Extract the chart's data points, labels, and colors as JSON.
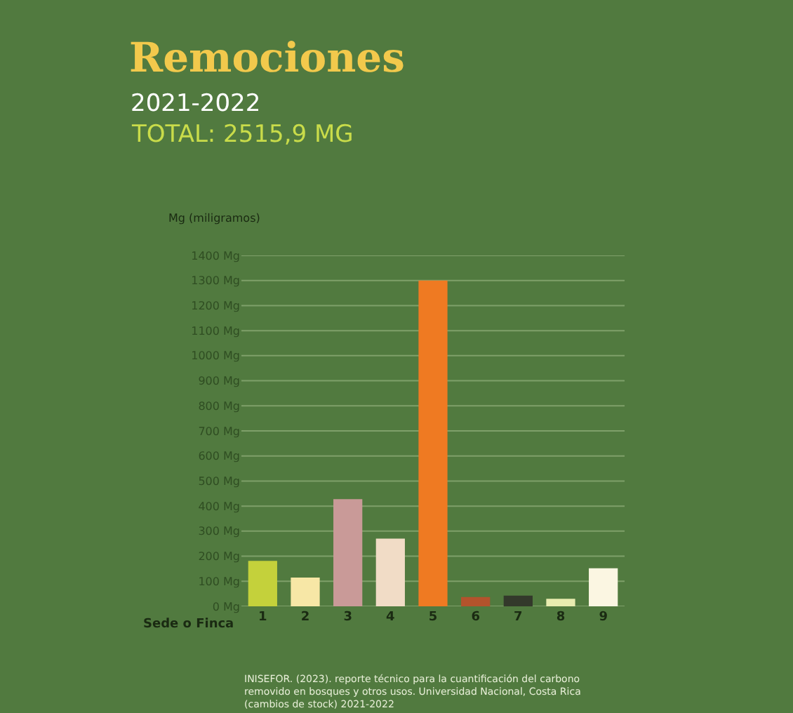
{
  "chart_data": {
    "type": "bar",
    "title": "Remociones",
    "subtitle": "2021-2022",
    "xlabel": "Sede o Finca",
    "ylabel": "Mg (miligramos)",
    "categories": [
      "1",
      "2",
      "3",
      "4",
      "5",
      "6",
      "7",
      "8",
      "9"
    ],
    "values": [
      181,
      115,
      428,
      270,
      1300,
      37,
      43,
      30,
      152
    ],
    "colors": [
      "#c4d13b",
      "#f7e7a6",
      "#c99a98",
      "#f1dcc6",
      "#ef7a22",
      "#b3532c",
      "#33392b",
      "#e8ecb0",
      "#fbf6e2"
    ],
    "ylim": [
      0,
      1400
    ],
    "yticks": [
      {
        "value": 0,
        "label": "0 Mg"
      },
      {
        "value": 100,
        "label": "100 Mg"
      },
      {
        "value": 200,
        "label": "200 Mg"
      },
      {
        "value": 300,
        "label": "300 Mg"
      },
      {
        "value": 400,
        "label": "400 Mg"
      },
      {
        "value": 500,
        "label": "500 Mg"
      },
      {
        "value": 600,
        "label": "600 Mg"
      },
      {
        "value": 700,
        "label": "700 Mg"
      },
      {
        "value": 800,
        "label": "800 Mg"
      },
      {
        "value": 900,
        "label": "900 Mg"
      },
      {
        "value": 1000,
        "label": "1000 Mg"
      },
      {
        "value": 1100,
        "label": "1100 Mg"
      },
      {
        "value": 1200,
        "label": "1200 Mg"
      },
      {
        "value": 1300,
        "label": "1300 Mg"
      },
      {
        "value": 1400,
        "label": "1400 Mg"
      }
    ],
    "grid": "y",
    "annotations": [
      "TOTAL: 2515,9 MG",
      "INISEFOR. (2023). reporte técnico para la cuantificación del carbono\nremovido en bosques y otros usos. Universidad Nacional, Costa Rica\n(cambios de stock) 2021-2022"
    ]
  }
}
